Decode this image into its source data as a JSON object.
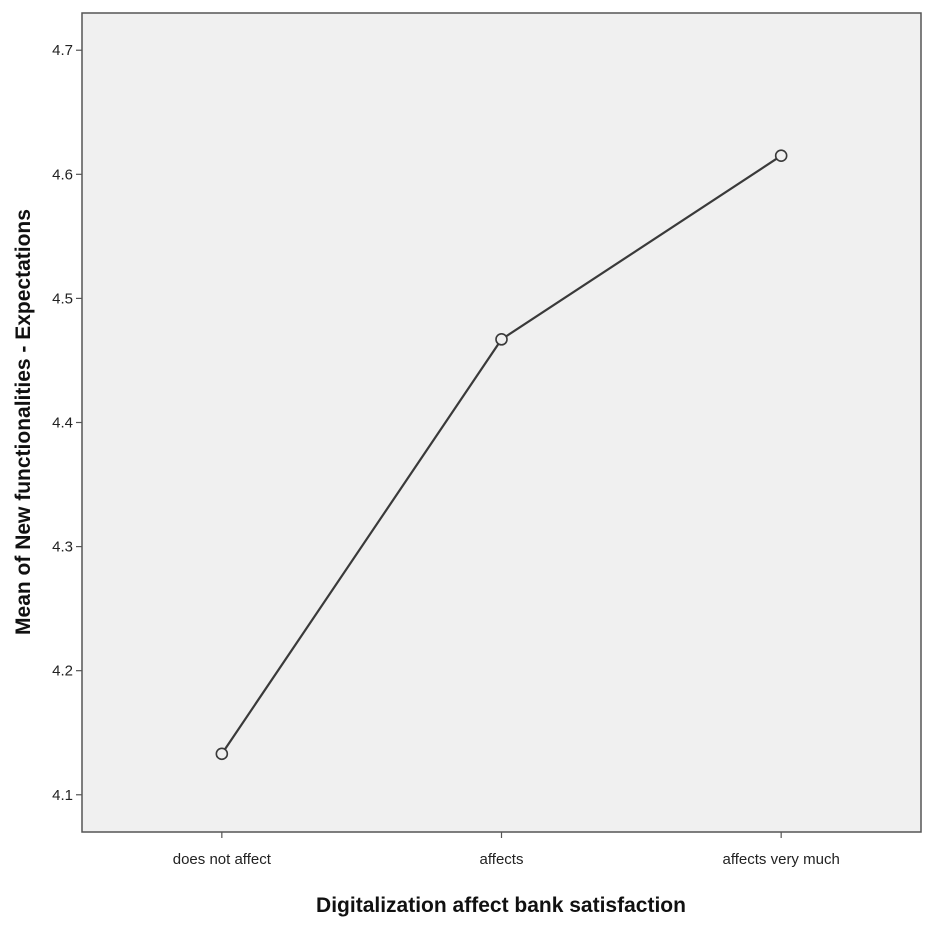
{
  "chart_data": {
    "type": "line",
    "title": "",
    "xlabel": "Digitalization affect bank satisfaction",
    "ylabel": "Mean of New functionalities - Expectations",
    "categories": [
      "does not affect",
      "affects",
      "affects very much"
    ],
    "series": [
      {
        "values": [
          4.133,
          4.467,
          4.615
        ]
      }
    ],
    "ylim": [
      4.07,
      4.73
    ],
    "yticks": [
      "4.1",
      "4.2",
      "4.3",
      "4.4",
      "4.5",
      "4.6",
      "4.7"
    ],
    "grid": false,
    "legend": "none",
    "marker": "open-circle",
    "colors": {
      "plot_background": "#f0f0f0",
      "frame": "#555555",
      "line": "#3a3a3a",
      "marker_fill": "#f0f0f0"
    }
  }
}
